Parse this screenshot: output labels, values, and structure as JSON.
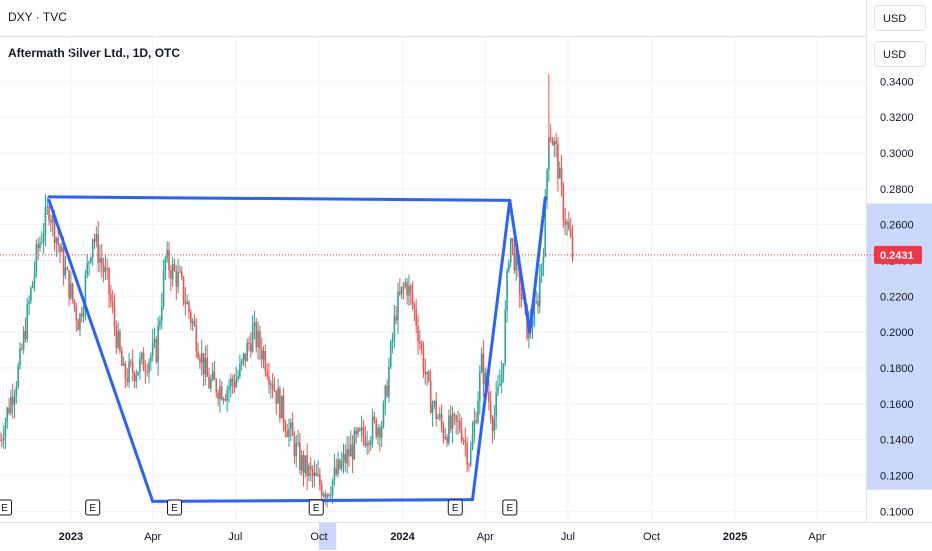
{
  "top_pane": {
    "symbol": "DXY · TVC",
    "currency": "USD"
  },
  "main_pane": {
    "symbol": "Aftermath Silver Ltd., 1D, OTC",
    "currency": "USD"
  },
  "colors": {
    "up": "#26a69a",
    "down": "#ef5350",
    "pattern": "#2962ff",
    "axis_highlight": "#c9d8fb",
    "price_label": "#f23645"
  },
  "chart_data": {
    "type": "candlestick",
    "title": "",
    "y_ticks": [
      "0.3400",
      "0.3200",
      "0.3000",
      "0.2800",
      "0.2600",
      "0.2400",
      "0.2200",
      "0.2000",
      "0.1800",
      "0.1600",
      "0.1400",
      "0.1200",
      "0.1000"
    ],
    "ylim": [
      0.094,
      0.353
    ],
    "x_labels": [
      "2023",
      "Apr",
      "Jul",
      "Oct",
      "2024",
      "Apr",
      "Jul",
      "Oct",
      "2025",
      "Apr"
    ],
    "x_label_dates": [
      "2023-01-01",
      "2023-04-01",
      "2023-07-01",
      "2023-10-01",
      "2024-01-01",
      "2024-04-01",
      "2024-07-01",
      "2024-10-01",
      "2025-01-01",
      "2025-04-01"
    ],
    "xlim": [
      "2022-10-15",
      "2025-05-25"
    ],
    "current_price": {
      "label": "0.2431",
      "value": 0.2431
    },
    "earnings_markers": [
      {
        "label": "E",
        "date": "2022-10-20"
      },
      {
        "label": "E",
        "date": "2023-01-25"
      },
      {
        "label": "E",
        "date": "2023-04-25"
      },
      {
        "label": "E",
        "date": "2023-09-28"
      },
      {
        "label": "E",
        "date": "2024-02-28"
      },
      {
        "label": "E",
        "date": "2024-04-28"
      }
    ],
    "highlighted_range": [
      "2023-10-01",
      "2023-10-20"
    ],
    "price_path": [
      [
        "2022-10-15",
        0.14
      ],
      [
        "2022-11-05",
        0.18
      ],
      [
        "2022-11-25",
        0.245
      ],
      [
        "2022-12-08",
        0.27
      ],
      [
        "2022-12-25",
        0.235
      ],
      [
        "2023-01-10",
        0.205
      ],
      [
        "2023-01-25",
        0.255
      ],
      [
        "2023-02-10",
        0.228
      ],
      [
        "2023-02-28",
        0.175
      ],
      [
        "2023-03-20",
        0.182
      ],
      [
        "2023-04-05",
        0.19
      ],
      [
        "2023-04-15",
        0.24
      ],
      [
        "2023-05-01",
        0.228
      ],
      [
        "2023-05-15",
        0.205
      ],
      [
        "2023-06-01",
        0.172
      ],
      [
        "2023-06-20",
        0.168
      ],
      [
        "2023-07-05",
        0.176
      ],
      [
        "2023-07-20",
        0.2
      ],
      [
        "2023-08-01",
        0.188
      ],
      [
        "2023-08-20",
        0.158
      ],
      [
        "2023-09-10",
        0.128
      ],
      [
        "2023-09-25",
        0.118
      ],
      [
        "2023-10-10",
        0.112
      ],
      [
        "2023-10-25",
        0.125
      ],
      [
        "2023-11-10",
        0.138
      ],
      [
        "2023-11-25",
        0.145
      ],
      [
        "2023-12-10",
        0.15
      ],
      [
        "2023-12-25",
        0.213
      ],
      [
        "2024-01-05",
        0.228
      ],
      [
        "2024-01-15",
        0.21
      ],
      [
        "2024-01-30",
        0.165
      ],
      [
        "2024-02-15",
        0.145
      ],
      [
        "2024-03-05",
        0.148
      ],
      [
        "2024-03-15",
        0.128
      ],
      [
        "2024-03-28",
        0.182
      ],
      [
        "2024-04-10",
        0.15
      ],
      [
        "2024-04-20",
        0.18
      ],
      [
        "2024-04-28",
        0.255
      ],
      [
        "2024-05-08",
        0.228
      ],
      [
        "2024-05-18",
        0.2
      ],
      [
        "2024-05-28",
        0.215
      ],
      [
        "2024-06-05",
        0.255
      ],
      [
        "2024-06-10",
        0.315
      ],
      [
        "2024-06-18",
        0.3
      ],
      [
        "2024-06-26",
        0.268
      ],
      [
        "2024-07-02",
        0.255
      ],
      [
        "2024-07-06",
        0.243
      ]
    ],
    "pattern_lines": [
      {
        "from": [
          "2022-12-08",
          0.2755
        ],
        "to": [
          "2024-04-28",
          0.2735
        ]
      },
      {
        "from": [
          "2022-12-08",
          0.2735
        ],
        "to": [
          "2023-04-01",
          0.1055
        ]
      },
      {
        "from": [
          "2023-04-01",
          0.1055
        ],
        "to": [
          "2024-03-18",
          0.1065
        ]
      },
      {
        "from": [
          "2024-03-18",
          0.1065
        ],
        "to": [
          "2024-04-28",
          0.2735
        ]
      },
      {
        "from": [
          "2024-04-28",
          0.2735
        ],
        "to": [
          "2024-05-20",
          0.2
        ]
      },
      {
        "from": [
          "2024-05-20",
          0.2
        ],
        "to": [
          "2024-06-06",
          0.275
        ]
      }
    ]
  }
}
